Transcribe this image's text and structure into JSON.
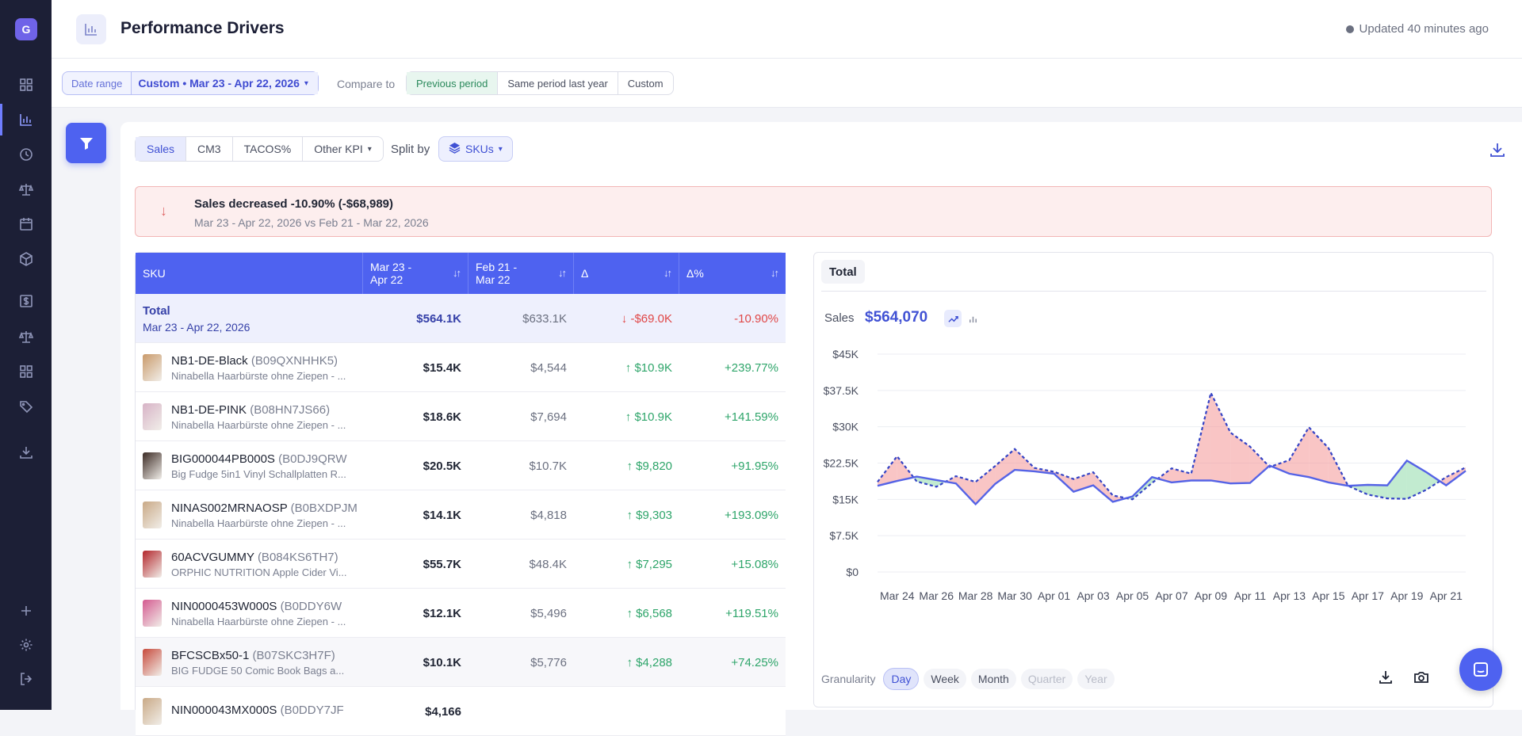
{
  "sidebar": {
    "logo": "G",
    "items": [
      {
        "name": "dashboard-icon"
      },
      {
        "name": "bar-chart-icon",
        "active": true
      },
      {
        "name": "clock-icon"
      },
      {
        "name": "scale-icon"
      },
      {
        "name": "calendar-icon"
      },
      {
        "name": "box-icon"
      },
      {
        "name": "dollar-icon"
      },
      {
        "name": "scale-icon"
      },
      {
        "name": "grid-icon"
      },
      {
        "name": "tag-icon"
      },
      {
        "name": "download-icon"
      }
    ],
    "bottom": [
      {
        "name": "plus-icon"
      },
      {
        "name": "gear-icon"
      },
      {
        "name": "logout-icon"
      }
    ]
  },
  "header": {
    "title": "Performance Drivers",
    "updated": "Updated 40 minutes ago"
  },
  "filters": {
    "date_label": "Date range",
    "date_value": "Custom • Mar 23 - Apr 22, 2026",
    "compare_label": "Compare to",
    "compare_options": [
      "Previous period",
      "Same period last year",
      "Custom"
    ],
    "compare_selected": 0
  },
  "kpi": {
    "tabs": [
      "Sales",
      "CM3",
      "TACOS%",
      "Other KPI"
    ],
    "selected": 0,
    "split_label": "Split by",
    "split_value": "SKUs"
  },
  "alert": {
    "title": "Sales decreased -10.90% (-$68,989)",
    "subtitle": "Mar 23 - Apr 22, 2026 vs Feb 21 - Mar 22, 2026"
  },
  "table": {
    "headers": [
      "SKU",
      "Mar 23 - Apr 22",
      "Feb 21 - Mar 22",
      "Δ",
      "Δ%"
    ],
    "total": {
      "label": "Total",
      "period": "Mar 23 - Apr 22, 2026",
      "cur": "$564.1K",
      "prev": "$633.1K",
      "delta": "↓ -$69.0K",
      "pct": "-10.90%"
    },
    "rows": [
      {
        "sku": "NB1-DE-Black",
        "asin": "(B09QXNHHK5)",
        "desc": "Ninabella Haarbürste ohne Ziepen - ...",
        "cur": "$15.4K",
        "prev": "$4,544",
        "delta": "↑ $10.9K",
        "pct": "+239.77%",
        "color": "#c99a6a"
      },
      {
        "sku": "NB1-DE-PINK",
        "asin": "(B08HN7JS66)",
        "desc": "Ninabella Haarbürste ohne Ziepen - ...",
        "cur": "$18.6K",
        "prev": "$7,694",
        "delta": "↑ $10.9K",
        "pct": "+141.59%",
        "color": "#d7b3c6"
      },
      {
        "sku": "BIG000044PB000S",
        "asin": "(B0DJ9QRW",
        "desc": "Big Fudge 5in1 Vinyl Schallplatten R...",
        "cur": "$20.5K",
        "prev": "$10.7K",
        "delta": "↑ $9,820",
        "pct": "+91.95%",
        "color": "#3b2a24"
      },
      {
        "sku": "NINAS002MRNAOSP",
        "asin": "(B0BXDPJM",
        "desc": "Ninabella Haarbürste ohne Ziepen - ...",
        "cur": "$14.1K",
        "prev": "$4,818",
        "delta": "↑ $9,303",
        "pct": "+193.09%",
        "color": "#c9a986"
      },
      {
        "sku": "60ACVGUMMY",
        "asin": "(B084KS6TH7)",
        "desc": "ORPHIC NUTRITION Apple Cider Vi...",
        "cur": "$55.7K",
        "prev": "$48.4K",
        "delta": "↑ $7,295",
        "pct": "+15.08%",
        "color": "#b3262b"
      },
      {
        "sku": "NIN0000453W000S",
        "asin": "(B0DDY6W",
        "desc": "Ninabella Haarbürste ohne Ziepen - ...",
        "cur": "$12.1K",
        "prev": "$5,496",
        "delta": "↑ $6,568",
        "pct": "+119.51%",
        "color": "#d45a90"
      },
      {
        "sku": "BFCSCBx50-1",
        "asin": "(B07SKC3H7F)",
        "desc": "BIG FUDGE 50 Comic Book Bags a...",
        "cur": "$10.1K",
        "prev": "$5,776",
        "delta": "↑ $4,288",
        "pct": "+74.25%",
        "color": "#c74a3c"
      },
      {
        "sku": "NIN000043MX000S",
        "asin": "(B0DDY7JF",
        "desc": "",
        "cur": "$4,166",
        "prev": "",
        "delta": "",
        "pct": "",
        "color": "#c9a986"
      }
    ]
  },
  "chart_panel": {
    "tab": "Total",
    "metric_label": "Sales",
    "metric_value": "$564,070",
    "granularity_label": "Granularity",
    "granularity": [
      "Day",
      "Week",
      "Month",
      "Quarter",
      "Year"
    ],
    "granularity_selected": 0,
    "granularity_disabled": [
      3,
      4
    ]
  },
  "chart_data": {
    "type": "line",
    "title": "",
    "yticks": [
      "$0",
      "$7.5K",
      "$15K",
      "$22.5K",
      "$30K",
      "$37.5K",
      "$45K"
    ],
    "ylim": [
      0,
      45000
    ],
    "xticks": [
      "Mar 24",
      "Mar 26",
      "Mar 28",
      "Mar 30",
      "Apr 01",
      "Apr 03",
      "Apr 05",
      "Apr 07",
      "Apr 09",
      "Apr 11",
      "Apr 13",
      "Apr 15",
      "Apr 17",
      "Apr 19",
      "Apr 21"
    ],
    "x": [
      "Mar 23",
      "Mar 24",
      "Mar 25",
      "Mar 26",
      "Mar 27",
      "Mar 28",
      "Mar 29",
      "Mar 30",
      "Mar 31",
      "Apr 01",
      "Apr 02",
      "Apr 03",
      "Apr 04",
      "Apr 05",
      "Apr 06",
      "Apr 07",
      "Apr 08",
      "Apr 09",
      "Apr 10",
      "Apr 11",
      "Apr 12",
      "Apr 13",
      "Apr 14",
      "Apr 15",
      "Apr 16",
      "Apr 17",
      "Apr 18",
      "Apr 19",
      "Apr 20",
      "Apr 21",
      "Apr 22"
    ],
    "series": [
      {
        "values": [
          17800,
          18800,
          19700,
          19000,
          18300,
          14000,
          18200,
          21100,
          20800,
          20300,
          16600,
          17900,
          14500,
          15600,
          19600,
          18500,
          18900,
          18900,
          18300,
          18400,
          22000,
          20300,
          19600,
          18500,
          17800,
          18000,
          17900,
          23000,
          20600,
          17900,
          20900
        ],
        "color": "#5563e6"
      },
      {
        "values": [
          18600,
          23900,
          18700,
          17600,
          19800,
          18600,
          21900,
          25400,
          21500,
          20700,
          19200,
          20600,
          15800,
          15000,
          18400,
          21400,
          20300,
          37000,
          28800,
          25900,
          21700,
          23100,
          29900,
          25600,
          17800,
          16000,
          15200,
          15100,
          17000,
          19600,
          21600
        ],
        "color": "#3443c6"
      }
    ],
    "grid": true,
    "legend": "none"
  }
}
